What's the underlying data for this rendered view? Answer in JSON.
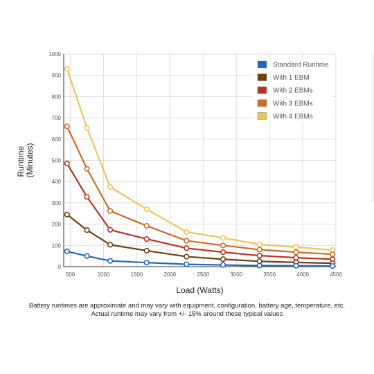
{
  "chart_data": {
    "type": "line",
    "xlabel": "Load (Watts)",
    "ylabel_lines": [
      "Runtime",
      "(Minutes)"
    ],
    "xlim": [
      400,
      4500
    ],
    "ylim": [
      0,
      1000
    ],
    "y_ticks": [
      0,
      100,
      200,
      300,
      400,
      500,
      600,
      700,
      800,
      900,
      1000
    ],
    "x_ticks": [
      500,
      1000,
      1500,
      2000,
      2500,
      3000,
      3500,
      4000,
      4500
    ],
    "grid": true,
    "legend_position": "top-right",
    "x": [
      450,
      750,
      1100,
      1650,
      2250,
      2800,
      3350,
      3900,
      4450
    ],
    "series": [
      {
        "name": "Standard Runtime",
        "color": "#1f66c1",
        "values": [
          72,
          50,
          27,
          19,
          11,
          8,
          5,
          4,
          3
        ]
      },
      {
        "name": "With 1 EBM",
        "color": "#6b3f0e",
        "values": [
          245,
          172,
          103,
          75,
          47,
          35,
          25,
          20,
          16
        ]
      },
      {
        "name": "With 2 EBMs",
        "color": "#b8331e",
        "values": [
          485,
          328,
          173,
          130,
          87,
          68,
          52,
          42,
          35
        ]
      },
      {
        "name": "With 3 EBMs",
        "color": "#d06a24",
        "values": [
          660,
          460,
          262,
          192,
          122,
          100,
          80,
          68,
          58
        ]
      },
      {
        "name": "With 4 EBMs",
        "color": "#eec35d",
        "values": [
          930,
          652,
          375,
          270,
          163,
          135,
          105,
          92,
          78
        ]
      }
    ]
  },
  "caption": {
    "line1": "Battery runtimes are approximate and may vary with equipment, configuration, battery age, temperature, etc.",
    "line2": "Actual runtime may vary from +/- 15% around these typical values"
  }
}
